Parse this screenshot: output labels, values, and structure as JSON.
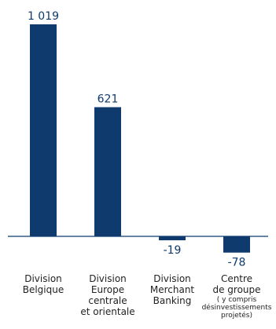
{
  "chart_data": {
    "type": "bar",
    "title": "",
    "xlabel": "",
    "ylabel": "",
    "grid": false,
    "ylim": [
      -100,
      1100
    ],
    "categories": [
      {
        "lines": [
          "Division",
          "Belgique"
        ],
        "sub": []
      },
      {
        "lines": [
          "Division",
          "Europe",
          "centrale",
          "et orientale"
        ],
        "sub": []
      },
      {
        "lines": [
          "Division",
          "Merchant",
          "Banking"
        ],
        "sub": []
      },
      {
        "lines": [
          "Centre",
          "de groupe"
        ],
        "sub": [
          "( y compris",
          "désinvestissements",
          "projetés)"
        ]
      }
    ],
    "values": [
      1019,
      621,
      -19,
      -78
    ],
    "value_labels": [
      "1 019",
      "621",
      "-19",
      "-78"
    ],
    "colors": {
      "bar": "#0e3a6e",
      "baseline": "#0e3a6e",
      "value_text": "#0e3a6e",
      "category_text": "#222222"
    }
  }
}
